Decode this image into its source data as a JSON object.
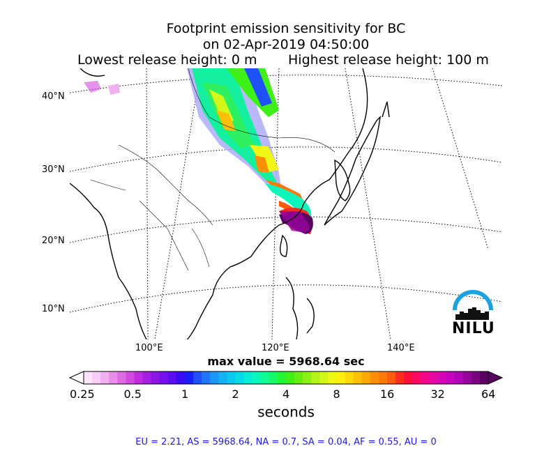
{
  "title": {
    "line1": "Footprint emission sensitivity for BC",
    "line2": "on 02-Apr-2019 04:50:00",
    "lowest": "Lowest release height: 0 m",
    "highest": "Highest release height: 100 m"
  },
  "map": {
    "lat_labels": [
      "40°N",
      "30°N",
      "20°N",
      "10°N"
    ],
    "lon_labels": [
      "100°E",
      "120°E",
      "140°E"
    ]
  },
  "max_value": "max value = 5968.64 sec",
  "colorbar": {
    "ticks": [
      "0.25",
      "0.5",
      "1",
      "2",
      "4",
      "8",
      "16",
      "32",
      "64"
    ],
    "label": "seconds",
    "colors": [
      "#fde6fb",
      "#f8cdf6",
      "#f1b0f0",
      "#e88ee9",
      "#de6be2",
      "#d24ae0",
      "#c12be0",
      "#a61ee2",
      "#8c16e6",
      "#7410ec",
      "#5a0cf2",
      "#3a0cf6",
      "#1a1ef8",
      "#1e52f8",
      "#2076f8",
      "#1a96f6",
      "#14b2f4",
      "#0ac8ee",
      "#06dce8",
      "#08ecd8",
      "#0cf6bc",
      "#10fa96",
      "#16fa6a",
      "#20f636",
      "#3ef016",
      "#66ee14",
      "#8cf016",
      "#b0f41a",
      "#d2f81a",
      "#eef814",
      "#fef00c",
      "#fed808",
      "#fec006",
      "#fea806",
      "#fe9008",
      "#fe780a",
      "#fe5a10",
      "#fe2c1a",
      "#fe0e38",
      "#fa0864",
      "#f2078a",
      "#e606a6",
      "#d805b6",
      "#c604bc",
      "#b004b6",
      "#96049e",
      "#7c0482",
      "#5c0262"
    ]
  },
  "stats": "EU = 2.21,  AS = 5968.64,  NA = 0.7,  SA = 0.04,  AF = 0.55,  AU = 0",
  "logo": {
    "text": "NILU",
    "accent": "#1aa3e0"
  }
}
